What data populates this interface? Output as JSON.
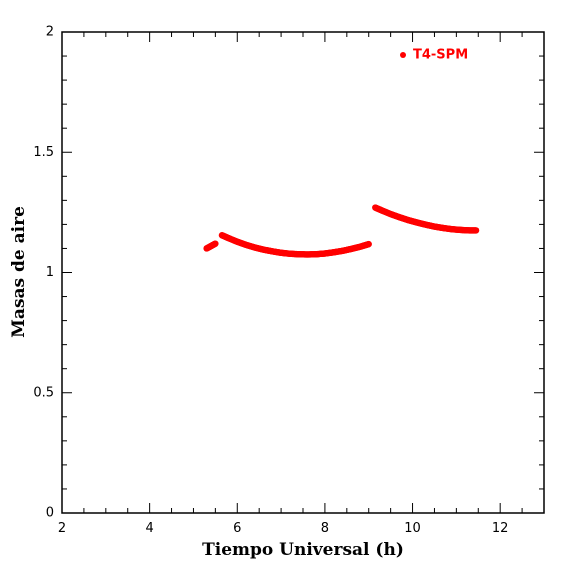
{
  "chart_data": {
    "type": "scatter",
    "xlabel": "Tiempo Universal (h)",
    "ylabel": "Masas de aire",
    "xlim": [
      2,
      13
    ],
    "ylim": [
      0,
      2
    ],
    "xticks": [
      2,
      4,
      6,
      8,
      10,
      12
    ],
    "yticks": [
      0,
      0.5,
      1,
      1.5,
      2
    ],
    "ytick_labels": [
      "0",
      "0.5",
      "1",
      "1.5",
      "2"
    ],
    "grid": false,
    "legend_position": "top-right",
    "series": [
      {
        "name": "T4-SPM",
        "color": "#ff0000",
        "segments": [
          {
            "x": [
              5.3,
              5.4,
              5.5
            ],
            "y": [
              1.1,
              1.11,
              1.12
            ]
          },
          {
            "x": [
              5.65,
              5.8,
              6.0,
              6.2,
              6.4,
              6.6,
              6.8,
              7.0,
              7.2,
              7.4,
              7.6,
              7.8,
              8.0,
              8.2,
              8.4,
              8.6,
              8.8,
              9.0
            ],
            "y": [
              1.155,
              1.143,
              1.128,
              1.115,
              1.104,
              1.095,
              1.088,
              1.082,
              1.078,
              1.076,
              1.075,
              1.076,
              1.079,
              1.084,
              1.09,
              1.098,
              1.107,
              1.118
            ]
          },
          {
            "x": [
              9.15,
              9.3,
              9.5,
              9.7,
              9.9,
              10.1,
              10.3,
              10.5,
              10.7,
              10.9,
              11.1,
              11.3,
              11.45
            ],
            "y": [
              1.27,
              1.258,
              1.243,
              1.23,
              1.218,
              1.208,
              1.199,
              1.191,
              1.185,
              1.18,
              1.177,
              1.175,
              1.175
            ]
          }
        ]
      }
    ]
  }
}
